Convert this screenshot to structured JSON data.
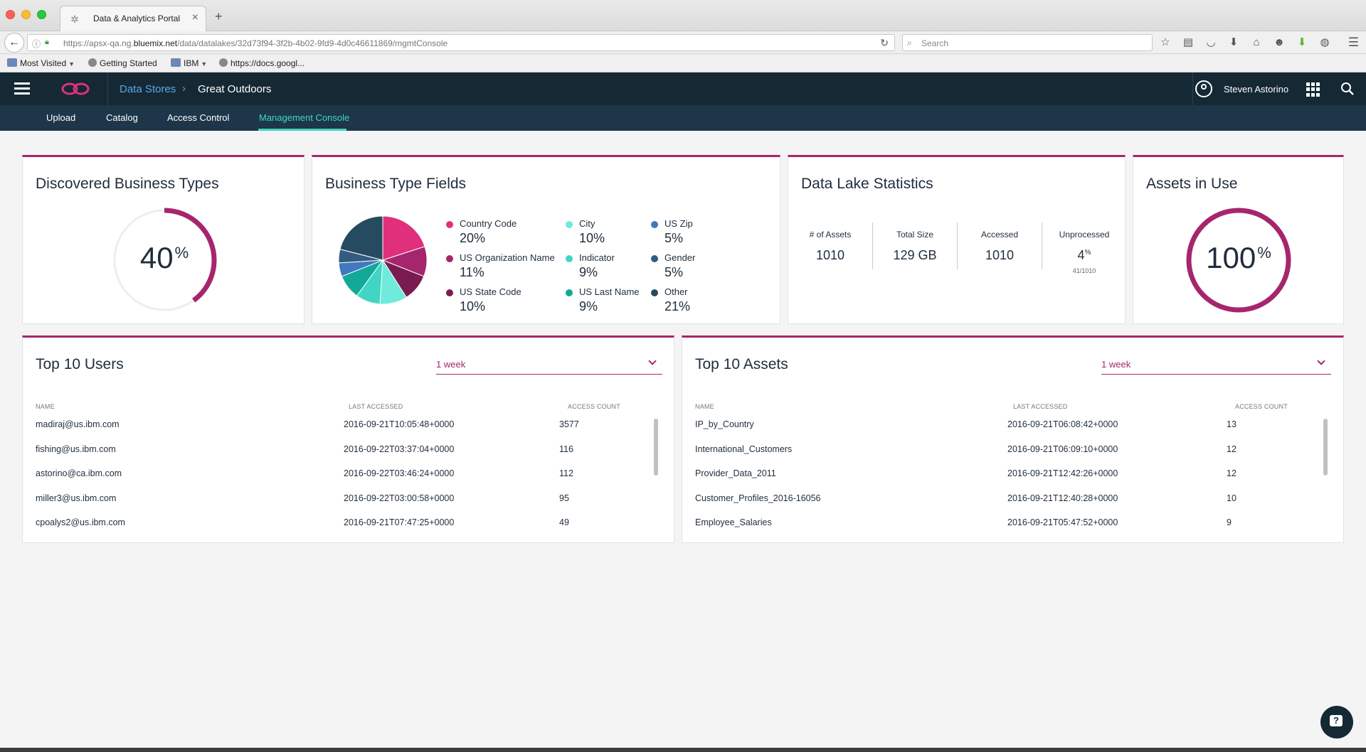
{
  "browser": {
    "tab_title": "Data & Analytics Portal",
    "tab_close": "×",
    "new_tab": "+",
    "url_prefix": "https://apsx-qa.ng.",
    "url_domain": "bluemix.net",
    "url_path": "/data/datalakes/32d73f94-3f2b-4b02-9fd9-4d0c46611869/mgmtConsole",
    "search_placeholder": "Search",
    "bookmarks": [
      "Most Visited",
      "Getting Started",
      "IBM",
      "https://docs.googl..."
    ]
  },
  "header": {
    "breadcrumb_root": "Data Stores",
    "breadcrumb_current": "Great Outdoors",
    "user_name": "Steven Astorino",
    "accent_color": "#a6266e",
    "active_color": "#41d6c3"
  },
  "subnav": {
    "tabs": [
      {
        "label": "Upload"
      },
      {
        "label": "Catalog"
      },
      {
        "label": "Access Control"
      },
      {
        "label": "Management Console",
        "active": true
      }
    ]
  },
  "discovered": {
    "title": "Discovered Business Types",
    "value": "40",
    "unit": "%",
    "fraction": 0.4
  },
  "fields": {
    "title": "Business Type Fields",
    "chart_data": {
      "type": "pie",
      "categories": [
        "Country Code",
        "US Organization Name",
        "US State Code",
        "City",
        "Indicator",
        "US Last Name",
        "US Zip",
        "Gender",
        "Other"
      ],
      "values": [
        20,
        11,
        10,
        10,
        9,
        9,
        5,
        5,
        21
      ],
      "labels": [
        "20%",
        "11%",
        "10%",
        "10%",
        "9%",
        "9%",
        "5%",
        "5%",
        "21%"
      ],
      "colors": [
        "#e0307c",
        "#a6266e",
        "#7a1c4f",
        "#6feadb",
        "#41d6c3",
        "#12a998",
        "#4178be",
        "#325c80",
        "#264a60"
      ],
      "legend": "right"
    }
  },
  "stats": {
    "title": "Data Lake Statistics",
    "items": [
      {
        "label": "# of Assets",
        "value": "1010"
      },
      {
        "label": "Total Size",
        "value": "129 GB"
      },
      {
        "label": "Accessed",
        "value": "1010"
      },
      {
        "label": "Unprocessed",
        "value": "4",
        "unit": "%",
        "sub": "41/1010"
      }
    ]
  },
  "assets_in_use": {
    "title": "Assets in Use",
    "value": "100",
    "unit": "%",
    "fraction": 1.0
  },
  "top_users": {
    "title": "Top 10 Users",
    "period": "1 week",
    "columns": [
      "NAME",
      "LAST ACCESSED",
      "ACCESS COUNT"
    ],
    "rows": [
      [
        "madiraj@us.ibm.com",
        "2016-09-21T10:05:48+0000",
        "3577"
      ],
      [
        "fishing@us.ibm.com",
        "2016-09-22T03:37:04+0000",
        "116"
      ],
      [
        "astorino@ca.ibm.com",
        "2016-09-22T03:46:24+0000",
        "112"
      ],
      [
        "miller3@us.ibm.com",
        "2016-09-22T03:00:58+0000",
        "95"
      ],
      [
        "cpoalys2@us.ibm.com",
        "2016-09-21T07:47:25+0000",
        "49"
      ]
    ]
  },
  "top_assets": {
    "title": "Top 10 Assets",
    "period": "1 week",
    "columns": [
      "NAME",
      "LAST ACCESSED",
      "ACCESS COUNT"
    ],
    "rows": [
      [
        "IP_by_Country",
        "2016-09-21T06:08:42+0000",
        "13"
      ],
      [
        "International_Customers",
        "2016-09-21T06:09:10+0000",
        "12"
      ],
      [
        "Provider_Data_2011",
        "2016-09-21T12:42:26+0000",
        "12"
      ],
      [
        "Customer_Profiles_2016-16056",
        "2016-09-21T12:40:28+0000",
        "10"
      ],
      [
        "Employee_Salaries",
        "2016-09-21T05:47:52+0000",
        "9"
      ]
    ]
  }
}
